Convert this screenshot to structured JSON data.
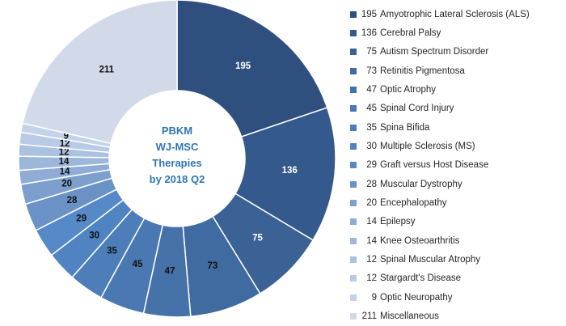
{
  "chart_data": {
    "type": "pie",
    "subtype": "donut",
    "title_lines": [
      "PBKM",
      "WJ-MSC",
      "Therapies",
      "by 2018 Q2"
    ],
    "legend_position": "right",
    "slices": [
      {
        "label": "Amyotrophic Lateral Sclerosis (ALS)",
        "value": 195,
        "color": "#2F4F7F"
      },
      {
        "label": "Cerebral Palsy",
        "value": 136,
        "color": "#34598C"
      },
      {
        "label": "Autism Spectrum Disorder",
        "value": 75,
        "color": "#3A6295"
      },
      {
        "label": "Retinitis Pigmentosa",
        "value": 73,
        "color": "#406BA0"
      },
      {
        "label": "Optic Atrophy",
        "value": 47,
        "color": "#4672AA"
      },
      {
        "label": "Spinal Cord Injury",
        "value": 45,
        "color": "#4A78B2"
      },
      {
        "label": "Spina Bifida",
        "value": 35,
        "color": "#4D7EBA"
      },
      {
        "label": "Multiple Sclerosis (MS)",
        "value": 30,
        "color": "#4F83C2"
      },
      {
        "label": "Graft versus Host Disease",
        "value": 29,
        "color": "#5589C7"
      },
      {
        "label": "Muscular Dystrophy",
        "value": 28,
        "color": "#6A92C6"
      },
      {
        "label": "Encephalopathy",
        "value": 20,
        "color": "#7D9FCE"
      },
      {
        "label": "Epilepsy",
        "value": 14,
        "color": "#8EACD5"
      },
      {
        "label": "Knee Osteoarthritis",
        "value": 14,
        "color": "#9DB7DA"
      },
      {
        "label": "Spinal Muscular Atrophy",
        "value": 12,
        "color": "#ABC1E0"
      },
      {
        "label": "Stargardt's Disease",
        "value": 12,
        "color": "#B8CAE5"
      },
      {
        "label": "Optic Neuropathy",
        "value": 9,
        "color": "#C4D2EA"
      },
      {
        "label": "Miscellaneous",
        "value": 211,
        "color": "#D2DAEA"
      }
    ]
  }
}
